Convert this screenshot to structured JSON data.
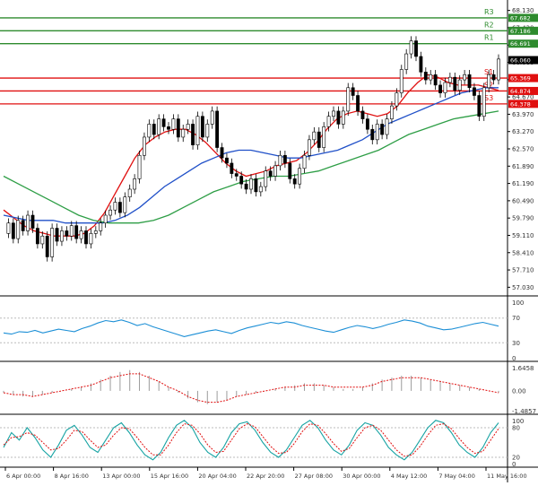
{
  "chart_data": [
    {
      "type": "candlestick",
      "panel": "price",
      "title": "",
      "ylim": [
        57.0,
        68.3
      ],
      "y_ticks": [
        "68.130",
        "67.430",
        "66.691",
        "66.060",
        "65.369",
        "64.670",
        "63.970",
        "63.270",
        "62.570",
        "61.890",
        "61.190",
        "60.490",
        "59.790",
        "59.110",
        "58.410",
        "57.710",
        "57.030"
      ],
      "price_tag": {
        "value": 66.06,
        "label": "66.060"
      },
      "levels": [
        {
          "name": "R3",
          "value": 67.682,
          "label": "67.682",
          "color": "#2e8b2e"
        },
        {
          "name": "R2",
          "value": 67.186,
          "label": "67.186",
          "color": "#2e8b2e"
        },
        {
          "name": "R1",
          "value": 66.691,
          "label": "66.691",
          "color": "#2e8b2e"
        },
        {
          "name": "S1",
          "value": 65.369,
          "label": "65.369",
          "color": "#e01010"
        },
        {
          "name": "S2",
          "value": 64.874,
          "label": "64.874",
          "color": "#e01010"
        },
        {
          "name": "S3",
          "value": 64.378,
          "label": "64.378",
          "color": "#e01010"
        }
      ],
      "series": [
        {
          "role": "price",
          "color": "#000000",
          "values": [
            59.4,
            59.8,
            59.2,
            59.9,
            59.5,
            60.1,
            59.6,
            59.0,
            59.3,
            58.5,
            59.6,
            59.1,
            59.5,
            59.3,
            59.7,
            59.2,
            59.5,
            59.0,
            59.4,
            59.5,
            59.8,
            60.1,
            60.3,
            60.6,
            60.2,
            60.8,
            61.1,
            61.5,
            62.4,
            63.1,
            63.6,
            63.2,
            63.8,
            63.5,
            63.4,
            63.8,
            63.1,
            63.4,
            63.6,
            62.8,
            63.9,
            63.1,
            63.6,
            64.1,
            62.7,
            62.3,
            62.1,
            61.7,
            61.6,
            61.3,
            61.1,
            61.5,
            61.0,
            61.2,
            61.8,
            61.6,
            62.0,
            62.4,
            62.1,
            61.5,
            61.3,
            61.9,
            62.4,
            63.0,
            63.3,
            62.7,
            63.5,
            63.9,
            64.1,
            63.6,
            64.1,
            65.0,
            64.7,
            64.1,
            63.8,
            63.4,
            63.0,
            63.6,
            63.2,
            63.8,
            64.3,
            64.8,
            65.7,
            66.3,
            66.8,
            66.2,
            65.6,
            65.3,
            65.5,
            65.1,
            64.8,
            65.2,
            65.4,
            64.9,
            65.3,
            65.5,
            65.0,
            64.7,
            63.9,
            65.0,
            65.5,
            65.3,
            66.1
          ]
        },
        {
          "role": "ma-fast",
          "color": "#e01010",
          "values": [
            60.3,
            60.0,
            59.7,
            59.5,
            59.4,
            59.3,
            59.3,
            59.3,
            59.4,
            59.7,
            60.2,
            60.9,
            61.6,
            62.3,
            62.8,
            63.1,
            63.3,
            63.4,
            63.4,
            63.2,
            62.9,
            62.5,
            62.1,
            61.8,
            61.6,
            61.7,
            61.8,
            62.0,
            62.1,
            62.2,
            62.5,
            62.9,
            63.4,
            63.8,
            64.0,
            64.1,
            64.0,
            63.9,
            64.0,
            64.3,
            64.8,
            65.2,
            65.5,
            65.4,
            65.2,
            65.1,
            65.1,
            65.1,
            65.0,
            64.9
          ]
        },
        {
          "role": "ma-mid",
          "color": "#2050c8",
          "values": [
            60.1,
            60.0,
            59.9,
            59.9,
            59.9,
            59.8,
            59.8,
            59.8,
            59.8,
            59.9,
            60.1,
            60.4,
            60.8,
            61.2,
            61.5,
            61.8,
            62.1,
            62.3,
            62.5,
            62.6,
            62.6,
            62.5,
            62.4,
            62.3,
            62.3,
            62.4,
            62.5,
            62.6,
            62.8,
            63.0,
            63.3,
            63.6,
            63.8,
            64.0,
            64.2,
            64.4,
            64.6,
            64.8,
            64.9,
            65.0,
            65.0
          ]
        },
        {
          "role": "ma-slow",
          "color": "#2e9e46",
          "values": [
            61.6,
            61.3,
            61.0,
            60.7,
            60.4,
            60.1,
            59.9,
            59.8,
            59.8,
            59.8,
            59.9,
            60.1,
            60.4,
            60.7,
            61.0,
            61.2,
            61.4,
            61.5,
            61.6,
            61.6,
            61.7,
            61.8,
            62.0,
            62.2,
            62.4,
            62.6,
            62.9,
            63.2,
            63.4,
            63.6,
            63.8,
            63.9,
            64.0,
            64.1
          ]
        }
      ],
      "x_ticks": [
        "6 Apr 00:00",
        "8 Apr 16:00",
        "13 Apr 00:00",
        "15 Apr 16:00",
        "20 Apr 04:00",
        "22 Apr 20:00",
        "27 Apr 08:00",
        "30 Apr 00:00",
        "4 May 12:00",
        "7 May 04:00",
        "11 May 16:00"
      ]
    },
    {
      "type": "line",
      "panel": "oscillator-1",
      "ylim": [
        0,
        100
      ],
      "y_ticks": [
        "100",
        "70",
        "30",
        "0"
      ],
      "series": [
        {
          "color": "#1c8fd6",
          "values": [
            46,
            44,
            48,
            47,
            50,
            46,
            49,
            52,
            50,
            48,
            53,
            57,
            62,
            66,
            64,
            67,
            63,
            58,
            61,
            56,
            52,
            48,
            44,
            40,
            43,
            46,
            49,
            51,
            48,
            45,
            50,
            54,
            57,
            60,
            63,
            61,
            64,
            62,
            58,
            55,
            52,
            49,
            47,
            51,
            55,
            58,
            56,
            53,
            56,
            60,
            63,
            67,
            65,
            62,
            57,
            54,
            51,
            52,
            55,
            58,
            61,
            63,
            60,
            57
          ]
        }
      ]
    },
    {
      "type": "bar",
      "panel": "oscillator-2",
      "ylim": [
        -1.4857,
        1.6458
      ],
      "y_ticks": [
        "1.6458",
        "0.00",
        "-1.4857"
      ],
      "series": [
        {
          "role": "histogram",
          "color": "#9c9c9c",
          "values": [
            -0.1,
            -0.2,
            -0.3,
            -0.3,
            -0.2,
            -0.1,
            0.0,
            0.1,
            0.2,
            0.4,
            0.6,
            0.8,
            1.0,
            1.1,
            1.0,
            0.8,
            0.5,
            0.2,
            -0.1,
            -0.4,
            -0.6,
            -0.7,
            -0.6,
            -0.5,
            -0.3,
            -0.2,
            -0.1,
            0.0,
            0.1,
            0.2,
            0.3,
            0.4,
            0.4,
            0.3,
            0.2,
            0.1,
            0.1,
            0.2,
            0.4,
            0.6,
            0.7,
            0.8,
            0.8,
            0.7,
            0.6,
            0.5,
            0.4,
            0.3,
            0.2,
            0.1,
            0.0,
            -0.1
          ]
        },
        {
          "role": "signal",
          "color": "#e01010",
          "values": [
            -0.1,
            -0.2,
            -0.2,
            -0.3,
            -0.2,
            -0.1,
            0.0,
            0.1,
            0.2,
            0.3,
            0.5,
            0.7,
            0.8,
            0.9,
            0.9,
            0.7,
            0.5,
            0.2,
            0.0,
            -0.3,
            -0.5,
            -0.6,
            -0.6,
            -0.5,
            -0.3,
            -0.2,
            -0.1,
            0.0,
            0.1,
            0.2,
            0.2,
            0.3,
            0.3,
            0.3,
            0.2,
            0.2,
            0.2,
            0.2,
            0.3,
            0.5,
            0.6,
            0.7,
            0.7,
            0.7,
            0.6,
            0.5,
            0.4,
            0.3,
            0.2,
            0.1,
            0.0,
            -0.1
          ]
        }
      ]
    },
    {
      "type": "line",
      "panel": "oscillator-3",
      "ylim": [
        0,
        100
      ],
      "y_ticks": [
        "100",
        "80",
        "20",
        "0"
      ],
      "series": [
        {
          "role": "k",
          "color": "#16a3a3",
          "values": [
            40,
            70,
            55,
            80,
            60,
            35,
            20,
            45,
            75,
            85,
            65,
            40,
            30,
            55,
            80,
            90,
            70,
            45,
            25,
            15,
            30,
            60,
            85,
            95,
            80,
            50,
            30,
            20,
            40,
            70,
            88,
            92,
            75,
            50,
            30,
            20,
            35,
            60,
            85,
            95,
            80,
            55,
            35,
            25,
            45,
            75,
            90,
            85,
            65,
            40,
            25,
            15,
            30,
            55,
            80,
            95,
            90,
            70,
            45,
            30,
            20,
            40,
            70,
            90
          ]
        },
        {
          "role": "d",
          "color": "#e01010",
          "values": [
            45,
            60,
            62,
            70,
            65,
            50,
            35,
            38,
            55,
            75,
            72,
            55,
            40,
            45,
            65,
            80,
            78,
            60,
            40,
            25,
            25,
            45,
            70,
            88,
            85,
            68,
            45,
            30,
            32,
            55,
            78,
            88,
            82,
            62,
            42,
            28,
            30,
            48,
            72,
            88,
            85,
            68,
            48,
            32,
            38,
            60,
            80,
            85,
            75,
            55,
            35,
            22,
            25,
            42,
            65,
            85,
            88,
            78,
            58,
            40,
            28,
            32,
            55,
            78
          ]
        }
      ]
    }
  ]
}
